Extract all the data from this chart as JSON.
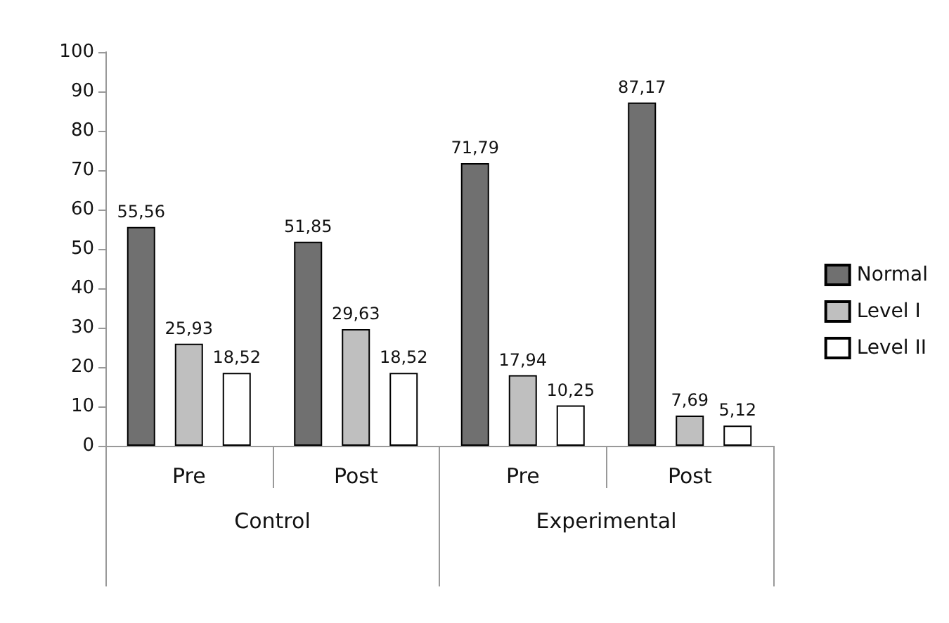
{
  "chart_data": {
    "type": "bar",
    "categories": [
      "Pre",
      "Post",
      "Pre",
      "Post"
    ],
    "annotations": [
      "Control",
      "Experimental"
    ],
    "series": [
      {
        "name": "Normal",
        "color": "#707070",
        "values": [
          55.56,
          51.85,
          71.79,
          87.17
        ],
        "value_labels": [
          "55,56",
          "51,85",
          "71,79",
          "87,17"
        ]
      },
      {
        "name": "Level I",
        "color": "#bfbfbf",
        "values": [
          25.93,
          29.63,
          17.94,
          7.69
        ],
        "value_labels": [
          "25,93",
          "29,63",
          "17,94",
          "7,69"
        ]
      },
      {
        "name": "Level II",
        "color": "#ffffff",
        "values": [
          18.52,
          18.52,
          10.25,
          5.12
        ],
        "value_labels": [
          "18,52",
          "18,52",
          "10,25",
          "5,12"
        ]
      }
    ],
    "ylim": [
      0,
      100
    ],
    "yticks": [
      0,
      10,
      20,
      30,
      40,
      50,
      60,
      70,
      80,
      90,
      100
    ],
    "grid": false,
    "legend": "right"
  }
}
